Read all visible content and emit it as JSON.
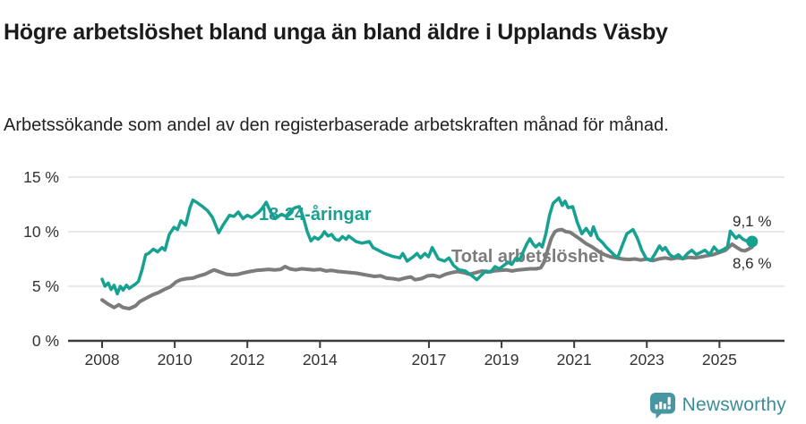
{
  "header": {
    "title": "Högre arbetslöshet bland unga än bland äldre i Upplands Väsby",
    "subtitle": "Arbetssökande som andel av den registerbaserade arbetskraften månad för månad."
  },
  "chart_data": {
    "type": "line",
    "title": "Högre arbetslöshet bland unga än bland äldre i Upplands Väsby",
    "unit": "%",
    "grid": "horizontal",
    "colors": {
      "grid": "#dcdcdc",
      "axis": "#3c3c3c",
      "axis_text": "#333333"
    },
    "x_axis": {
      "range": [
        2007.5,
        2026.3
      ],
      "ticks": [
        {
          "value": 2008,
          "label": "2008"
        },
        {
          "value": 2010,
          "label": "2010"
        },
        {
          "value": 2012,
          "label": "2012"
        },
        {
          "value": 2014,
          "label": "2014"
        },
        {
          "value": 2017,
          "label": "2017"
        },
        {
          "value": 2019,
          "label": "2019"
        },
        {
          "value": 2021,
          "label": "2021"
        },
        {
          "value": 2023,
          "label": "2023"
        },
        {
          "value": 2025,
          "label": "2025"
        }
      ]
    },
    "y_axis": {
      "range": [
        0,
        16.4
      ],
      "ticks": [
        {
          "value": 0,
          "label": "0 %"
        },
        {
          "value": 5,
          "label": "5 %"
        },
        {
          "value": 10,
          "label": "10 %"
        },
        {
          "value": 15,
          "label": "15 %"
        }
      ]
    },
    "series": [
      {
        "id": "total",
        "name": "Total arbetslöshet",
        "color": "#7c7c7c",
        "end_label": "8,6 %",
        "end_value": 8.6,
        "end_dot": false,
        "points": [
          [
            2008.0,
            3.75
          ],
          [
            2008.17,
            3.35
          ],
          [
            2008.33,
            3.05
          ],
          [
            2008.46,
            3.3
          ],
          [
            2008.58,
            3.05
          ],
          [
            2008.75,
            2.95
          ],
          [
            2008.92,
            3.2
          ],
          [
            2009.04,
            3.6
          ],
          [
            2009.21,
            3.9
          ],
          [
            2009.38,
            4.2
          ],
          [
            2009.54,
            4.4
          ],
          [
            2009.71,
            4.7
          ],
          [
            2009.88,
            4.95
          ],
          [
            2010.04,
            5.4
          ],
          [
            2010.17,
            5.6
          ],
          [
            2010.33,
            5.7
          ],
          [
            2010.5,
            5.75
          ],
          [
            2010.67,
            5.95
          ],
          [
            2010.83,
            6.1
          ],
          [
            2010.96,
            6.3
          ],
          [
            2011.08,
            6.5
          ],
          [
            2011.25,
            6.3
          ],
          [
            2011.42,
            6.1
          ],
          [
            2011.58,
            6.05
          ],
          [
            2011.75,
            6.1
          ],
          [
            2011.92,
            6.25
          ],
          [
            2012.08,
            6.35
          ],
          [
            2012.25,
            6.45
          ],
          [
            2012.42,
            6.5
          ],
          [
            2012.58,
            6.55
          ],
          [
            2012.75,
            6.5
          ],
          [
            2012.92,
            6.55
          ],
          [
            2013.04,
            6.8
          ],
          [
            2013.17,
            6.6
          ],
          [
            2013.33,
            6.5
          ],
          [
            2013.5,
            6.6
          ],
          [
            2013.67,
            6.55
          ],
          [
            2013.83,
            6.5
          ],
          [
            2014.0,
            6.55
          ],
          [
            2014.17,
            6.4
          ],
          [
            2014.33,
            6.45
          ],
          [
            2014.5,
            6.35
          ],
          [
            2014.67,
            6.3
          ],
          [
            2014.83,
            6.25
          ],
          [
            2015.0,
            6.2
          ],
          [
            2015.17,
            6.1
          ],
          [
            2015.33,
            6.0
          ],
          [
            2015.5,
            5.9
          ],
          [
            2015.67,
            5.95
          ],
          [
            2015.83,
            5.75
          ],
          [
            2016.0,
            5.7
          ],
          [
            2016.17,
            5.6
          ],
          [
            2016.33,
            5.75
          ],
          [
            2016.5,
            5.85
          ],
          [
            2016.62,
            5.6
          ],
          [
            2016.79,
            5.7
          ],
          [
            2016.96,
            5.95
          ],
          [
            2017.12,
            6.0
          ],
          [
            2017.29,
            5.85
          ],
          [
            2017.46,
            6.1
          ],
          [
            2017.62,
            6.25
          ],
          [
            2017.79,
            6.35
          ],
          [
            2017.96,
            6.25
          ],
          [
            2018.12,
            6.1
          ],
          [
            2018.29,
            6.25
          ],
          [
            2018.46,
            6.4
          ],
          [
            2018.62,
            6.3
          ],
          [
            2018.79,
            6.4
          ],
          [
            2018.96,
            6.45
          ],
          [
            2019.12,
            6.5
          ],
          [
            2019.29,
            6.4
          ],
          [
            2019.46,
            6.5
          ],
          [
            2019.62,
            6.55
          ],
          [
            2019.79,
            6.6
          ],
          [
            2019.96,
            6.6
          ],
          [
            2020.08,
            6.7
          ],
          [
            2020.17,
            7.2
          ],
          [
            2020.27,
            8.3
          ],
          [
            2020.37,
            9.4
          ],
          [
            2020.47,
            10.0
          ],
          [
            2020.56,
            10.15
          ],
          [
            2020.66,
            10.2
          ],
          [
            2020.77,
            10.0
          ],
          [
            2020.89,
            9.95
          ],
          [
            2021.0,
            9.7
          ],
          [
            2021.17,
            9.3
          ],
          [
            2021.33,
            8.9
          ],
          [
            2021.5,
            8.6
          ],
          [
            2021.67,
            8.2
          ],
          [
            2021.83,
            7.9
          ],
          [
            2022.0,
            7.7
          ],
          [
            2022.17,
            7.6
          ],
          [
            2022.33,
            7.5
          ],
          [
            2022.5,
            7.45
          ],
          [
            2022.67,
            7.5
          ],
          [
            2022.83,
            7.4
          ],
          [
            2023.0,
            7.5
          ],
          [
            2023.17,
            7.35
          ],
          [
            2023.33,
            7.5
          ],
          [
            2023.5,
            7.6
          ],
          [
            2023.67,
            7.5
          ],
          [
            2023.83,
            7.6
          ],
          [
            2024.0,
            7.55
          ],
          [
            2024.17,
            7.65
          ],
          [
            2024.33,
            7.6
          ],
          [
            2024.5,
            7.7
          ],
          [
            2024.67,
            7.8
          ],
          [
            2024.83,
            7.9
          ],
          [
            2025.0,
            8.1
          ],
          [
            2025.17,
            8.3
          ],
          [
            2025.35,
            8.85
          ],
          [
            2025.48,
            8.55
          ],
          [
            2025.6,
            8.3
          ],
          [
            2025.7,
            8.25
          ],
          [
            2025.8,
            8.4
          ],
          [
            2025.9,
            8.6
          ]
        ]
      },
      {
        "id": "youth",
        "name": "18-24-åringar",
        "color": "#16a191",
        "end_label": "9,1 %",
        "end_value": 9.1,
        "end_dot": true,
        "points": [
          [
            2008.0,
            5.65
          ],
          [
            2008.08,
            5.0
          ],
          [
            2008.17,
            5.3
          ],
          [
            2008.25,
            4.7
          ],
          [
            2008.33,
            5.1
          ],
          [
            2008.42,
            4.3
          ],
          [
            2008.5,
            5.0
          ],
          [
            2008.58,
            4.65
          ],
          [
            2008.67,
            5.1
          ],
          [
            2008.75,
            4.8
          ],
          [
            2008.83,
            5.0
          ],
          [
            2008.92,
            5.2
          ],
          [
            2009.0,
            5.45
          ],
          [
            2009.1,
            6.5
          ],
          [
            2009.2,
            7.9
          ],
          [
            2009.28,
            8.0
          ],
          [
            2009.41,
            8.4
          ],
          [
            2009.53,
            8.15
          ],
          [
            2009.65,
            8.55
          ],
          [
            2009.73,
            8.3
          ],
          [
            2009.85,
            9.75
          ],
          [
            2009.98,
            10.4
          ],
          [
            2010.08,
            10.2
          ],
          [
            2010.17,
            11.0
          ],
          [
            2010.3,
            10.6
          ],
          [
            2010.42,
            12.2
          ],
          [
            2010.5,
            12.9
          ],
          [
            2010.6,
            12.7
          ],
          [
            2010.77,
            12.3
          ],
          [
            2010.91,
            11.9
          ],
          [
            2011.04,
            11.3
          ],
          [
            2011.21,
            9.9
          ],
          [
            2011.33,
            10.6
          ],
          [
            2011.51,
            11.5
          ],
          [
            2011.63,
            11.4
          ],
          [
            2011.75,
            11.8
          ],
          [
            2011.88,
            11.2
          ],
          [
            2012.0,
            11.5
          ],
          [
            2012.12,
            11.3
          ],
          [
            2012.32,
            11.8
          ],
          [
            2012.42,
            12.2
          ],
          [
            2012.52,
            12.7
          ],
          [
            2012.64,
            11.8
          ],
          [
            2012.77,
            11.2
          ],
          [
            2012.94,
            11.6
          ],
          [
            2013.06,
            11.4
          ],
          [
            2013.19,
            11.9
          ],
          [
            2013.31,
            12.2
          ],
          [
            2013.43,
            12.3
          ],
          [
            2013.55,
            11.2
          ],
          [
            2013.65,
            10.0
          ],
          [
            2013.75,
            9.15
          ],
          [
            2013.85,
            9.5
          ],
          [
            2013.95,
            9.3
          ],
          [
            2014.05,
            9.6
          ],
          [
            2014.12,
            10.0
          ],
          [
            2014.22,
            9.6
          ],
          [
            2014.32,
            9.75
          ],
          [
            2014.42,
            9.3
          ],
          [
            2014.52,
            9.2
          ],
          [
            2014.62,
            9.55
          ],
          [
            2014.72,
            9.3
          ],
          [
            2014.79,
            9.6
          ],
          [
            2014.89,
            9.35
          ],
          [
            2014.99,
            9.1
          ],
          [
            2015.16,
            8.95
          ],
          [
            2015.36,
            9.1
          ],
          [
            2015.46,
            8.55
          ],
          [
            2015.6,
            8.3
          ],
          [
            2015.78,
            8.0
          ],
          [
            2015.98,
            7.75
          ],
          [
            2016.2,
            7.6
          ],
          [
            2016.28,
            8.0
          ],
          [
            2016.4,
            7.3
          ],
          [
            2016.57,
            7.7
          ],
          [
            2016.67,
            8.0
          ],
          [
            2016.77,
            7.6
          ],
          [
            2016.89,
            8.0
          ],
          [
            2016.99,
            7.7
          ],
          [
            2017.09,
            8.55
          ],
          [
            2017.26,
            7.5
          ],
          [
            2017.43,
            7.3
          ],
          [
            2017.55,
            7.6
          ],
          [
            2017.68,
            6.9
          ],
          [
            2017.83,
            6.5
          ],
          [
            2018.0,
            6.4
          ],
          [
            2018.17,
            6.0
          ],
          [
            2018.32,
            5.6
          ],
          [
            2018.44,
            6.0
          ],
          [
            2018.57,
            6.4
          ],
          [
            2018.7,
            6.3
          ],
          [
            2018.82,
            6.8
          ],
          [
            2018.94,
            6.6
          ],
          [
            2019.06,
            6.9
          ],
          [
            2019.18,
            7.2
          ],
          [
            2019.28,
            7.0
          ],
          [
            2019.4,
            7.6
          ],
          [
            2019.5,
            7.4
          ],
          [
            2019.6,
            8.2
          ],
          [
            2019.7,
            8.9
          ],
          [
            2019.78,
            9.35
          ],
          [
            2019.86,
            8.9
          ],
          [
            2019.94,
            8.6
          ],
          [
            2020.04,
            8.9
          ],
          [
            2020.12,
            8.6
          ],
          [
            2020.22,
            9.8
          ],
          [
            2020.32,
            11.5
          ],
          [
            2020.42,
            12.6
          ],
          [
            2020.52,
            12.9
          ],
          [
            2020.58,
            13.1
          ],
          [
            2020.67,
            12.4
          ],
          [
            2020.75,
            12.8
          ],
          [
            2020.83,
            12.2
          ],
          [
            2020.96,
            12.3
          ],
          [
            2021.08,
            10.9
          ],
          [
            2021.21,
            9.8
          ],
          [
            2021.33,
            10.3
          ],
          [
            2021.46,
            9.65
          ],
          [
            2021.53,
            10.45
          ],
          [
            2021.65,
            9.4
          ],
          [
            2021.78,
            9.0
          ],
          [
            2021.88,
            8.6
          ],
          [
            2022.0,
            8.2
          ],
          [
            2022.12,
            7.8
          ],
          [
            2022.2,
            7.65
          ],
          [
            2022.33,
            8.8
          ],
          [
            2022.45,
            9.8
          ],
          [
            2022.62,
            10.2
          ],
          [
            2022.74,
            9.4
          ],
          [
            2022.86,
            8.3
          ],
          [
            2022.99,
            7.5
          ],
          [
            2023.11,
            7.35
          ],
          [
            2023.23,
            8.0
          ],
          [
            2023.35,
            8.7
          ],
          [
            2023.43,
            8.3
          ],
          [
            2023.51,
            8.55
          ],
          [
            2023.63,
            7.9
          ],
          [
            2023.75,
            7.65
          ],
          [
            2023.87,
            7.9
          ],
          [
            2023.99,
            7.5
          ],
          [
            2024.12,
            8.0
          ],
          [
            2024.24,
            8.3
          ],
          [
            2024.36,
            7.9
          ],
          [
            2024.48,
            8.1
          ],
          [
            2024.6,
            8.3
          ],
          [
            2024.73,
            7.9
          ],
          [
            2024.85,
            8.6
          ],
          [
            2024.97,
            8.15
          ],
          [
            2025.1,
            8.35
          ],
          [
            2025.22,
            8.6
          ],
          [
            2025.3,
            10.05
          ],
          [
            2025.38,
            9.7
          ],
          [
            2025.46,
            9.4
          ],
          [
            2025.54,
            9.65
          ],
          [
            2025.65,
            9.3
          ],
          [
            2025.75,
            9.15
          ],
          [
            2025.9,
            9.1
          ]
        ]
      }
    ]
  },
  "footer": {
    "brand": "Newsworthy",
    "brand_color": "#3c8c99",
    "logo_icon": "newsworthy-chart-bubble"
  }
}
